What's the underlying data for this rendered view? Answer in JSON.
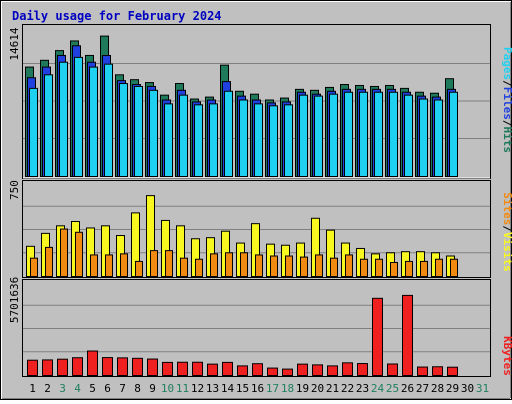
{
  "chart_data": [
    {
      "type": "bar",
      "title": "Daily usage for February 2024",
      "ymax_label": "14614",
      "ylabels": [
        "Hits",
        "Files",
        "Pages"
      ],
      "colors": {
        "hits": "#1f7a5c",
        "files": "#2040e0",
        "pages": "#20d0f0"
      },
      "x": [
        1,
        2,
        3,
        4,
        5,
        6,
        7,
        8,
        9,
        10,
        11,
        12,
        13,
        14,
        15,
        16,
        17,
        18,
        19,
        20,
        21,
        22,
        23,
        24,
        25,
        26,
        27,
        28,
        29,
        30,
        31
      ],
      "series": [
        {
          "name": "Hits",
          "values": [
            11300,
            12000,
            13000,
            14000,
            12500,
            14500,
            10500,
            10000,
            9700,
            8400,
            9600,
            8000,
            8200,
            11500,
            8800,
            8500,
            7900,
            8100,
            9000,
            8900,
            9200,
            9500,
            9400,
            9300,
            9400,
            9100,
            8700,
            8600,
            10100,
            null,
            null
          ]
        },
        {
          "name": "Files",
          "values": [
            10200,
            11300,
            12500,
            13500,
            11800,
            12500,
            9900,
            9500,
            9300,
            7900,
            8900,
            7700,
            7900,
            9800,
            8300,
            7900,
            7600,
            7700,
            8700,
            8500,
            8800,
            9000,
            9000,
            9000,
            9000,
            8700,
            8300,
            8200,
            9000,
            null,
            null
          ]
        },
        {
          "name": "Pages",
          "values": [
            9100,
            10500,
            11800,
            12300,
            11300,
            11600,
            9600,
            9300,
            8900,
            7500,
            8400,
            7400,
            7500,
            8800,
            7900,
            7500,
            7300,
            7400,
            8400,
            8300,
            8500,
            8700,
            8700,
            8700,
            8700,
            8400,
            8000,
            7900,
            8700,
            null,
            null
          ]
        }
      ]
    },
    {
      "type": "bar",
      "ymax_label": "750",
      "ylabels": [
        "Visits",
        "Sites"
      ],
      "colors": {
        "visits": "#f8f820",
        "sites": "#f08a10"
      },
      "x": [
        1,
        2,
        3,
        4,
        5,
        6,
        7,
        8,
        9,
        10,
        11,
        12,
        13,
        14,
        15,
        16,
        17,
        18,
        19,
        20,
        21,
        22,
        23,
        24,
        25,
        26,
        27,
        28,
        29,
        30,
        31
      ],
      "series": [
        {
          "name": "Visits",
          "values": [
            280,
            400,
            470,
            510,
            450,
            470,
            380,
            590,
            750,
            520,
            470,
            350,
            360,
            420,
            310,
            490,
            300,
            290,
            310,
            540,
            430,
            310,
            260,
            210,
            220,
            230,
            230,
            220,
            190,
            null,
            null
          ]
        },
        {
          "name": "Sites",
          "values": [
            170,
            270,
            440,
            410,
            200,
            200,
            210,
            140,
            240,
            240,
            170,
            160,
            210,
            220,
            220,
            200,
            190,
            190,
            180,
            200,
            170,
            200,
            160,
            160,
            130,
            140,
            140,
            160,
            160,
            null,
            null
          ]
        }
      ]
    },
    {
      "type": "bar",
      "ymax_label": "5701636",
      "ylabels": [
        "KBytes"
      ],
      "colors": {
        "kbytes": "#f02020"
      },
      "x": [
        1,
        2,
        3,
        4,
        5,
        6,
        7,
        8,
        9,
        10,
        11,
        12,
        13,
        14,
        15,
        16,
        17,
        18,
        19,
        20,
        21,
        22,
        23,
        24,
        25,
        26,
        27,
        28,
        29,
        30,
        31
      ],
      "series": [
        {
          "name": "KBytes",
          "values": [
            1050000,
            1070000,
            1120000,
            1220000,
            1680000,
            1230000,
            1210000,
            1180000,
            1130000,
            900000,
            910000,
            910000,
            780000,
            900000,
            660000,
            810000,
            510000,
            440000,
            780000,
            730000,
            660000,
            870000,
            820000,
            5300000,
            790000,
            5500000,
            580000,
            600000,
            570000,
            null,
            null
          ]
        }
      ]
    }
  ],
  "xaxis": {
    "labels": [
      "1",
      "2",
      "3",
      "4",
      "5",
      "6",
      "7",
      "8",
      "9",
      "10",
      "11",
      "12",
      "13",
      "14",
      "15",
      "16",
      "17",
      "18",
      "19",
      "20",
      "21",
      "22",
      "23",
      "24",
      "25",
      "26",
      "27",
      "28",
      "29",
      "30",
      "31"
    ],
    "weekend_color": "#208060",
    "weekday_color": "#000000",
    "weekend_days": [
      3,
      4,
      10,
      11,
      17,
      18,
      24,
      25,
      31
    ]
  }
}
